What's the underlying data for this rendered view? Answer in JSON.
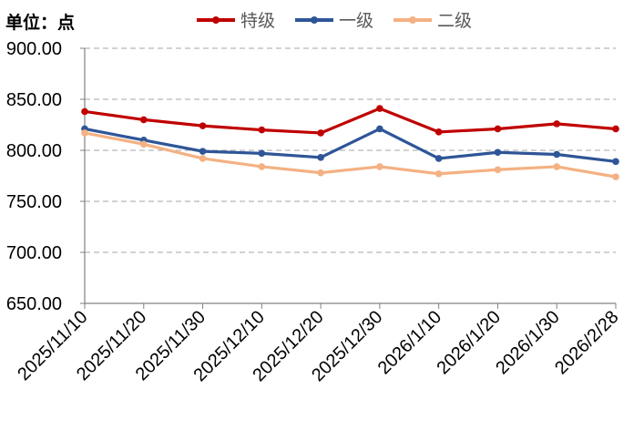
{
  "chart_data": {
    "type": "line",
    "unit_label": "单位：点",
    "categories": [
      "2025/11/10",
      "2025/11/20",
      "2025/11/30",
      "2025/12/10",
      "2025/12/20",
      "2025/12/30",
      "2026/1/10",
      "2026/1/20",
      "2026/1/30",
      "2026/2/28"
    ],
    "y_ticks": [
      "650.00",
      "700.00",
      "750.00",
      "800.00",
      "850.00",
      "900.00"
    ],
    "ylim": [
      650,
      900
    ],
    "series": [
      {
        "name": "特级",
        "color": "#C00000",
        "values": [
          838,
          830,
          824,
          820,
          817,
          841,
          818,
          821,
          826,
          821
        ]
      },
      {
        "name": "一级",
        "color": "#2E5597",
        "values": [
          821,
          810,
          799,
          797,
          793,
          821,
          792,
          798,
          796,
          789
        ]
      },
      {
        "name": "二级",
        "color": "#F4B183",
        "values": [
          817,
          806,
          792,
          784,
          778,
          784,
          777,
          781,
          784,
          774
        ]
      }
    ],
    "grid": true,
    "legend_position": "top-center"
  }
}
